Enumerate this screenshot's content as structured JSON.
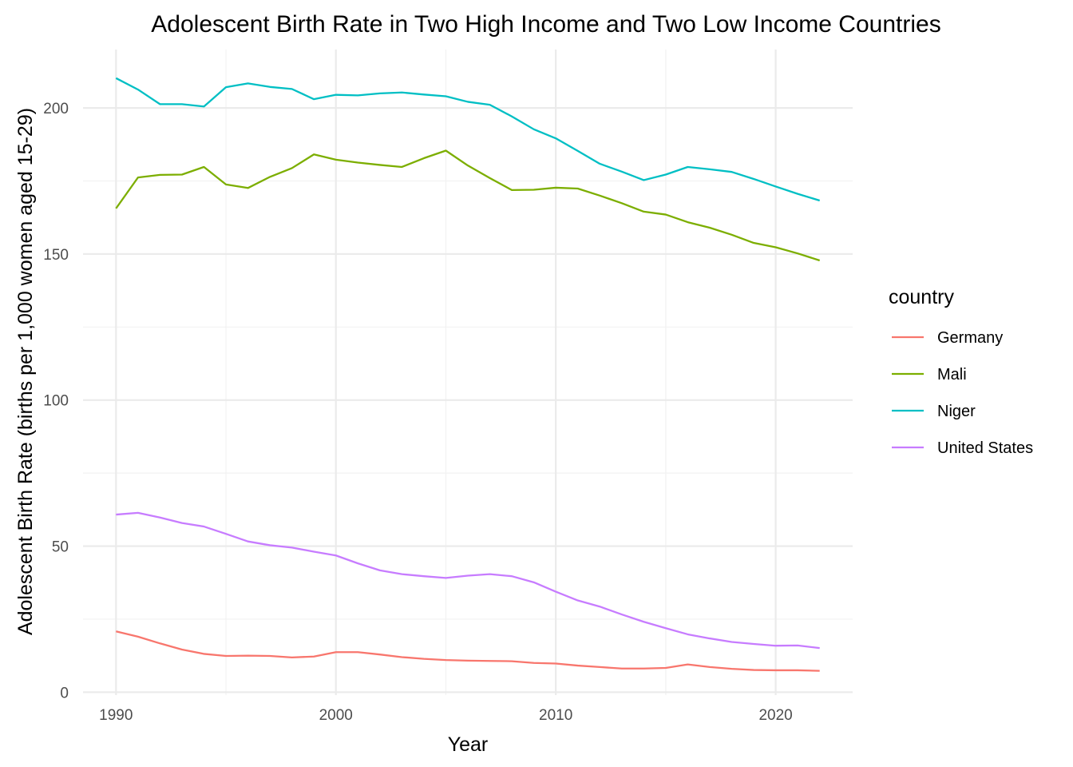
{
  "chart_data": {
    "type": "line",
    "title": "Adolescent Birth Rate in Two High Income and Two Low Income Countries",
    "xlabel": "Year",
    "ylabel": "Adolescent Birth Rate (births per 1,000 women aged 15-29)",
    "xlim": [
      1988.5,
      2023.5
    ],
    "ylim": [
      -1,
      220
    ],
    "x_ticks": [
      1990,
      2000,
      2010,
      2020
    ],
    "y_ticks": [
      0,
      50,
      100,
      150,
      200
    ],
    "grid": true,
    "legend": {
      "title": "country",
      "position": "right"
    },
    "x": [
      1990,
      1991,
      1992,
      1993,
      1994,
      1995,
      1996,
      1997,
      1998,
      1999,
      2000,
      2001,
      2002,
      2003,
      2004,
      2005,
      2006,
      2007,
      2008,
      2009,
      2010,
      2011,
      2012,
      2013,
      2014,
      2015,
      2016,
      2017,
      2018,
      2019,
      2020,
      2021,
      2022
    ],
    "series": [
      {
        "name": "Germany",
        "color": "#F8766D",
        "values": [
          20.8,
          19.0,
          16.7,
          14.6,
          13.1,
          12.4,
          12.5,
          12.4,
          11.9,
          12.2,
          13.7,
          13.7,
          12.9,
          12.0,
          11.4,
          11.0,
          10.8,
          10.7,
          10.6,
          10.0,
          9.8,
          9.1,
          8.6,
          8.1,
          8.1,
          8.3,
          9.5,
          8.6,
          8.0,
          7.6,
          7.5,
          7.5,
          7.3
        ]
      },
      {
        "name": "Mali",
        "color": "#7CAE00",
        "values": [
          165.6,
          176.2,
          177.1,
          177.2,
          179.8,
          173.8,
          172.6,
          176.4,
          179.4,
          184.1,
          182.3,
          181.3,
          180.5,
          179.8,
          182.8,
          185.4,
          180.3,
          176.0,
          171.9,
          172.0,
          172.7,
          172.4,
          170.0,
          167.4,
          164.5,
          163.5,
          160.9,
          159.0,
          156.6,
          153.8,
          152.3,
          150.2,
          147.8
        ]
      },
      {
        "name": "Niger",
        "color": "#00BFC4",
        "values": [
          210.2,
          206.3,
          201.3,
          201.3,
          200.5,
          207.1,
          208.4,
          207.2,
          206.5,
          203.0,
          204.5,
          204.3,
          205.0,
          205.3,
          204.6,
          204.0,
          202.1,
          201.1,
          197.1,
          192.7,
          189.6,
          185.3,
          180.9,
          178.2,
          175.3,
          177.2,
          179.8,
          179.0,
          178.1,
          175.7,
          173.1,
          170.6,
          168.3
        ]
      },
      {
        "name": "United States",
        "color": "#C77CFF",
        "values": [
          60.8,
          61.4,
          59.8,
          57.9,
          56.7,
          54.2,
          51.6,
          50.3,
          49.5,
          48.1,
          46.8,
          44.1,
          41.7,
          40.4,
          39.7,
          39.1,
          39.9,
          40.4,
          39.7,
          37.6,
          34.4,
          31.4,
          29.3,
          26.6,
          24.1,
          21.9,
          19.8,
          18.4,
          17.2,
          16.5,
          15.9,
          16.0,
          15.1
        ]
      }
    ]
  }
}
